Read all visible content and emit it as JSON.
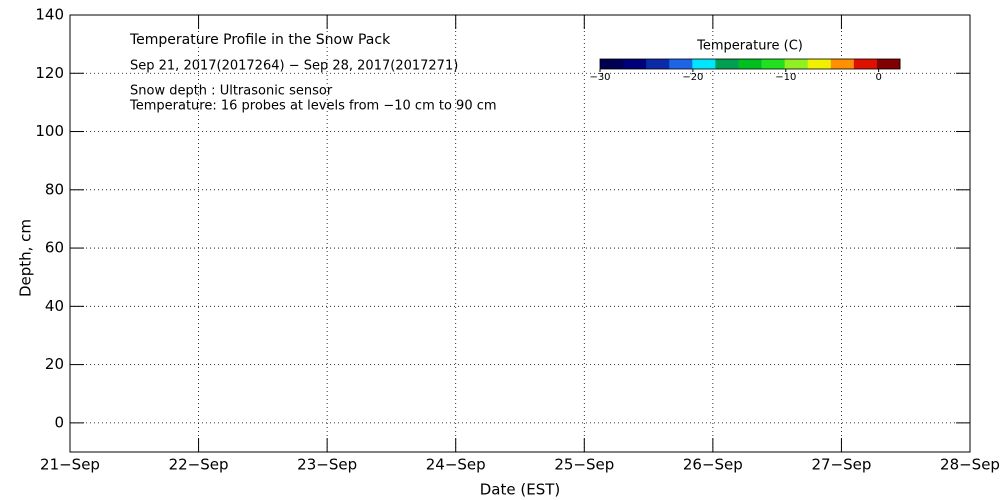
{
  "chart_data": {
    "type": "line",
    "title": "Temperature Profile in the Snow Pack",
    "subtitle": "Sep 21, 2017(2017264) − Sep 28, 2017(2017271)",
    "annotations": [
      "Snow depth : Ultrasonic sensor",
      "Temperature: 16 probes at levels from −10 cm to 90 cm"
    ],
    "xlabel": "Date (EST)",
    "ylabel": "Depth, cm",
    "series": [],
    "xlim": [
      21,
      28
    ],
    "xticks": [
      {
        "value": 21,
        "label": "21−Sep"
      },
      {
        "value": 22,
        "label": "22−Sep"
      },
      {
        "value": 23,
        "label": "23−Sep"
      },
      {
        "value": 24,
        "label": "24−Sep"
      },
      {
        "value": 25,
        "label": "25−Sep"
      },
      {
        "value": 26,
        "label": "26−Sep"
      },
      {
        "value": 27,
        "label": "27−Sep"
      },
      {
        "value": 28,
        "label": "28−Sep"
      }
    ],
    "ylim": [
      -10,
      140
    ],
    "yticks": [
      0,
      20,
      40,
      60,
      80,
      100,
      120,
      140
    ],
    "grid": true,
    "colorbar": {
      "title": "Temperature (C)",
      "lim": [
        -30,
        2.3
      ],
      "colors": [
        "#000050",
        "#00007a",
        "#0a2aa8",
        "#1e64e6",
        "#00e6ff",
        "#00a050",
        "#00c020",
        "#20e020",
        "#90f020",
        "#f0f000",
        "#ff9000",
        "#e01000",
        "#800000"
      ],
      "ticks": [
        {
          "value": -30,
          "label": "−30"
        },
        {
          "value": -20,
          "label": "−20"
        },
        {
          "value": -10,
          "label": "−10"
        },
        0
      ]
    }
  }
}
